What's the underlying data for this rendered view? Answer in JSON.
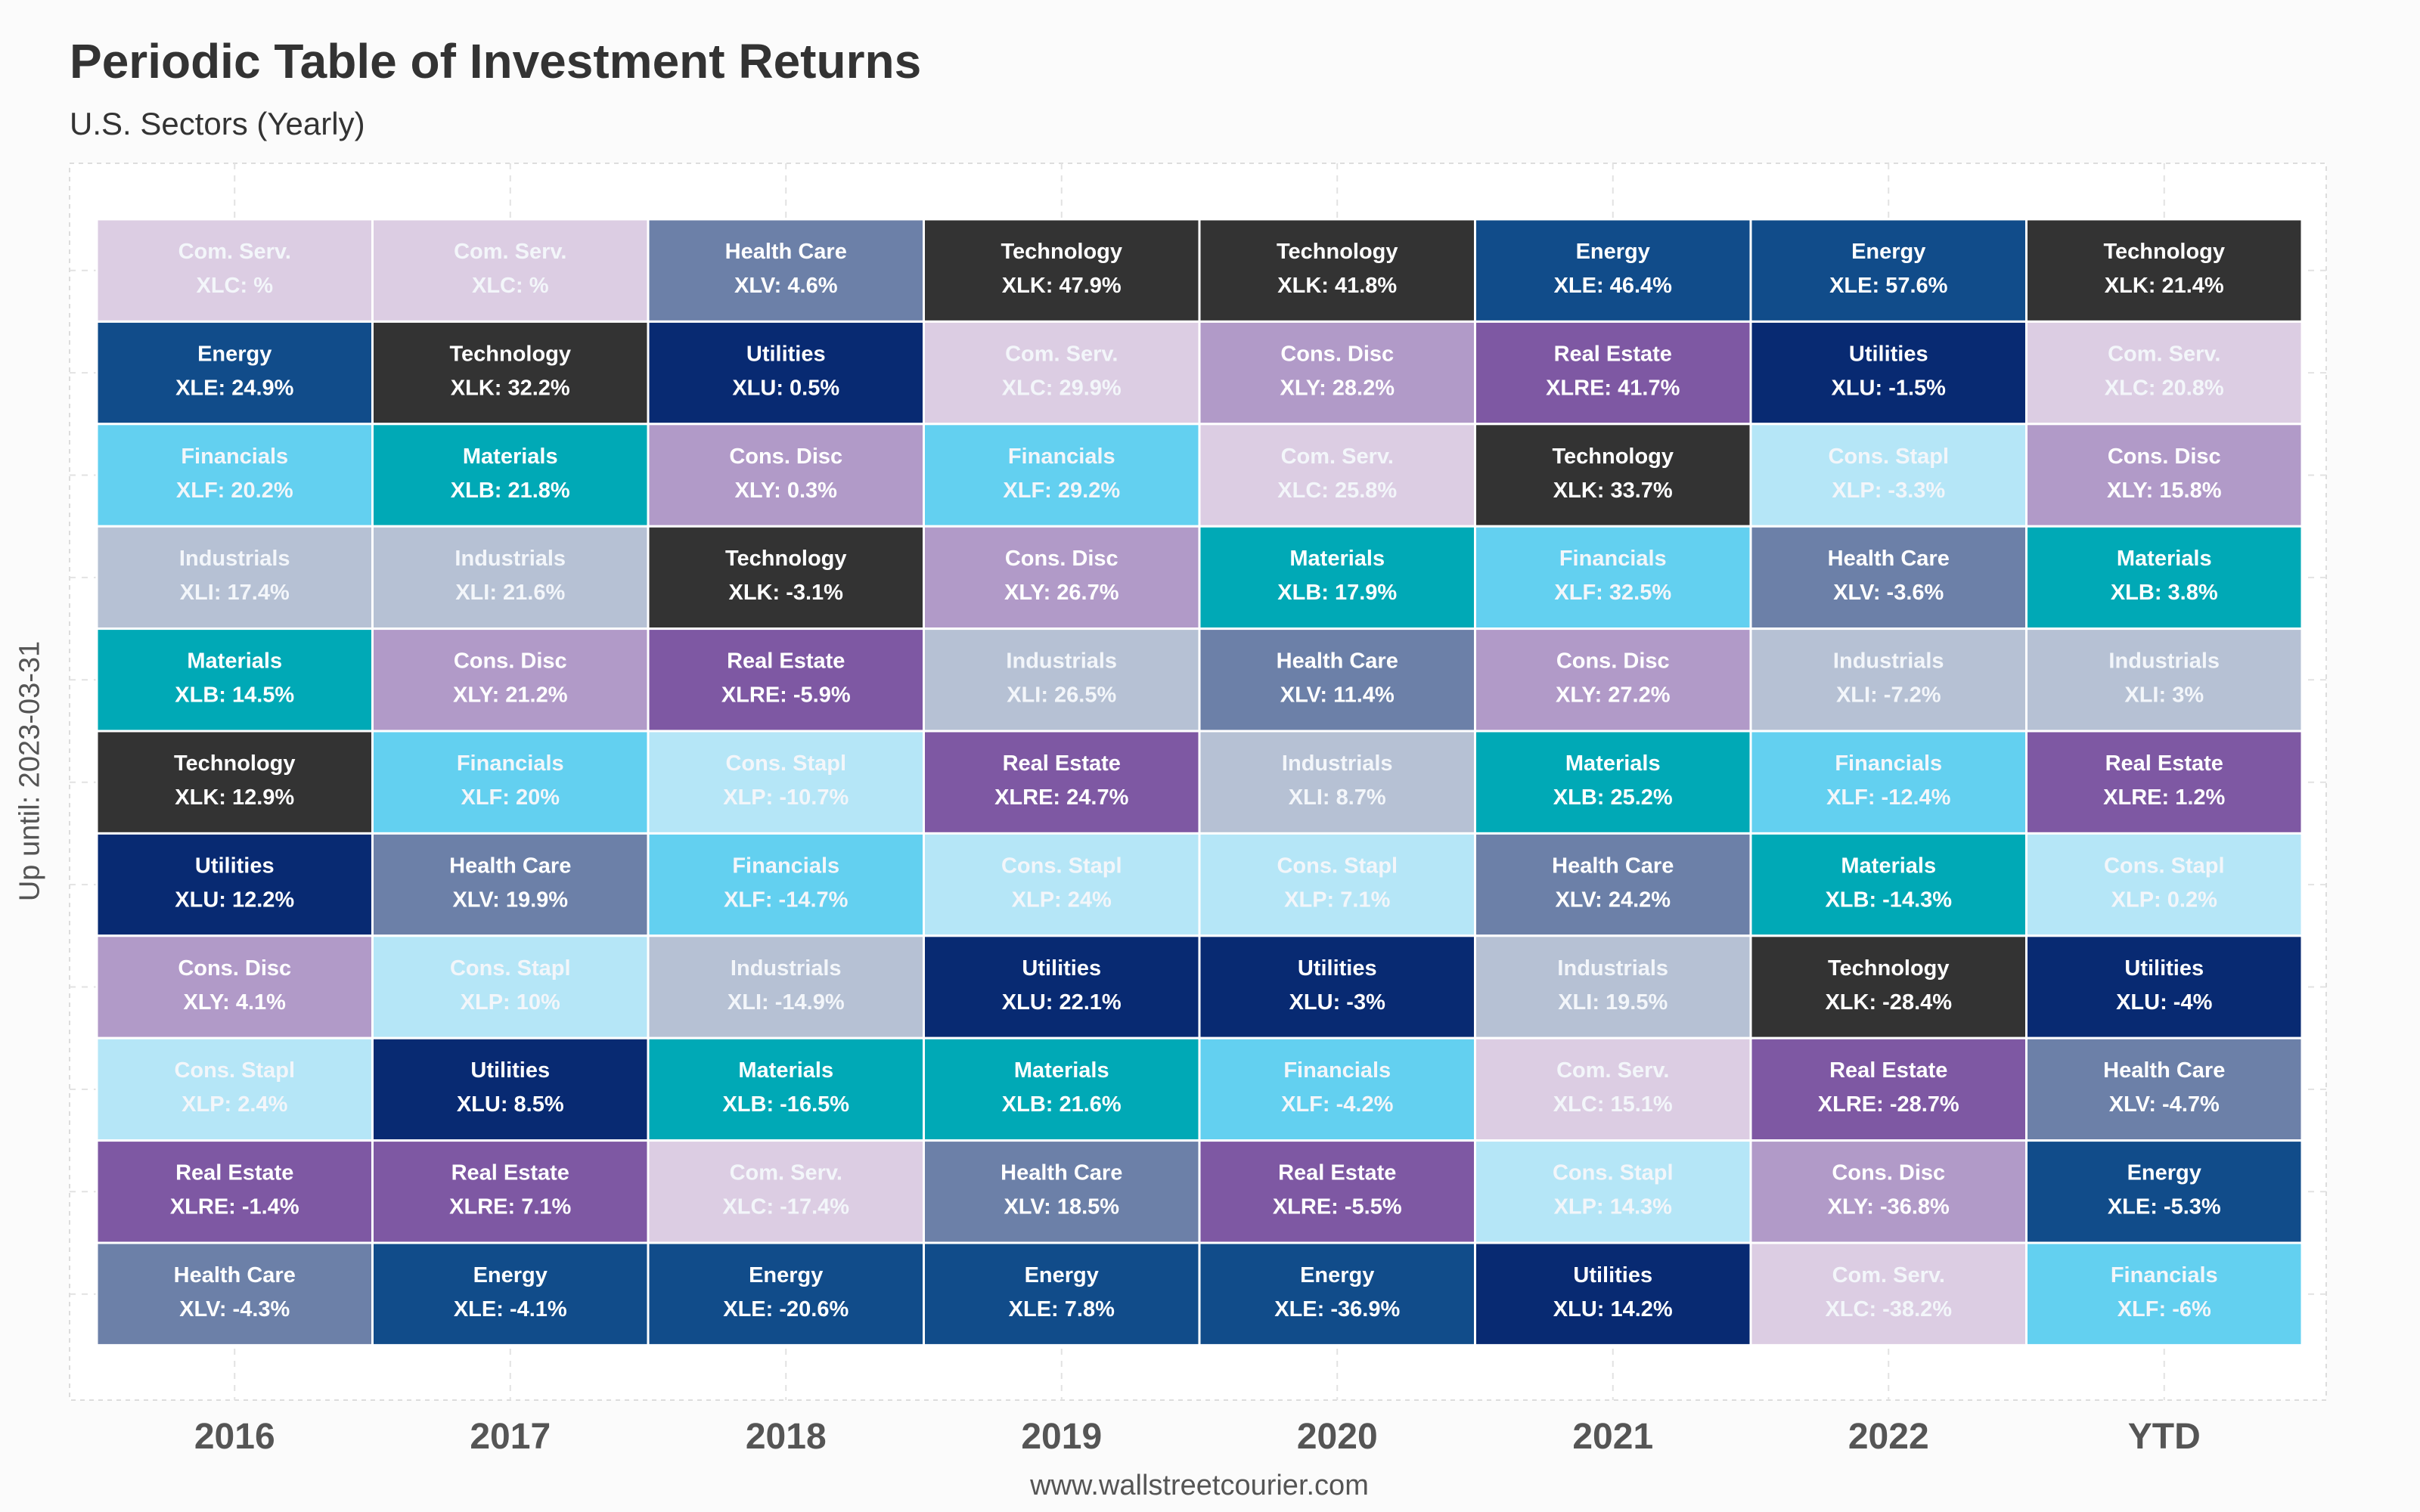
{
  "title": "Periodic Table of Investment Returns",
  "subtitle": "U.S. Sectors (Yearly)",
  "ylabel": "Up until: 2023-03-31",
  "caption": "www.wallstreetcourier.com",
  "colors": {
    "Com. Serv.": "#dccde3",
    "Energy": "#114c8a",
    "Financials": "#63d0f0",
    "Industrials": "#b6c1d4",
    "Materials": "#00a9b6",
    "Technology": "#333333",
    "Utilities": "#082a72",
    "Cons. Disc": "#b19ac8",
    "Cons. Stapl": "#b5e6f7",
    "Real Estate": "#7e58a3",
    "Health Care": "#6c80a8"
  },
  "light_text_sectors": [
    "Com. Serv.",
    "Cons. Stapl",
    "Industrials",
    "Financials"
  ],
  "chart_data": {
    "type": "table",
    "columns": [
      "2016",
      "2017",
      "2018",
      "2019",
      "2020",
      "2021",
      "2022",
      "YTD"
    ],
    "cells": [
      [
        {
          "sector": "Com. Serv.",
          "label": "XLC: %"
        },
        {
          "sector": "Energy",
          "label": "XLE: 24.9%"
        },
        {
          "sector": "Financials",
          "label": "XLF: 20.2%"
        },
        {
          "sector": "Industrials",
          "label": "XLI: 17.4%"
        },
        {
          "sector": "Materials",
          "label": "XLB: 14.5%"
        },
        {
          "sector": "Technology",
          "label": "XLK: 12.9%"
        },
        {
          "sector": "Utilities",
          "label": "XLU: 12.2%"
        },
        {
          "sector": "Cons. Disc",
          "label": "XLY: 4.1%"
        },
        {
          "sector": "Cons. Stapl",
          "label": "XLP: 2.4%"
        },
        {
          "sector": "Real Estate",
          "label": "XLRE: -1.4%"
        },
        {
          "sector": "Health Care",
          "label": "XLV: -4.3%"
        }
      ],
      [
        {
          "sector": "Com. Serv.",
          "label": "XLC: %"
        },
        {
          "sector": "Technology",
          "label": "XLK: 32.2%"
        },
        {
          "sector": "Materials",
          "label": "XLB: 21.8%"
        },
        {
          "sector": "Industrials",
          "label": "XLI: 21.6%"
        },
        {
          "sector": "Cons. Disc",
          "label": "XLY: 21.2%"
        },
        {
          "sector": "Financials",
          "label": "XLF: 20%"
        },
        {
          "sector": "Health Care",
          "label": "XLV: 19.9%"
        },
        {
          "sector": "Cons. Stapl",
          "label": "XLP: 10%"
        },
        {
          "sector": "Utilities",
          "label": "XLU: 8.5%"
        },
        {
          "sector": "Real Estate",
          "label": "XLRE: 7.1%"
        },
        {
          "sector": "Energy",
          "label": "XLE: -4.1%"
        }
      ],
      [
        {
          "sector": "Health Care",
          "label": "XLV: 4.6%"
        },
        {
          "sector": "Utilities",
          "label": "XLU: 0.5%"
        },
        {
          "sector": "Cons. Disc",
          "label": "XLY: 0.3%"
        },
        {
          "sector": "Technology",
          "label": "XLK: -3.1%"
        },
        {
          "sector": "Real Estate",
          "label": "XLRE: -5.9%"
        },
        {
          "sector": "Cons. Stapl",
          "label": "XLP: -10.7%"
        },
        {
          "sector": "Financials",
          "label": "XLF: -14.7%"
        },
        {
          "sector": "Industrials",
          "label": "XLI: -14.9%"
        },
        {
          "sector": "Materials",
          "label": "XLB: -16.5%"
        },
        {
          "sector": "Com. Serv.",
          "label": "XLC: -17.4%"
        },
        {
          "sector": "Energy",
          "label": "XLE: -20.6%"
        }
      ],
      [
        {
          "sector": "Technology",
          "label": "XLK: 47.9%"
        },
        {
          "sector": "Com. Serv.",
          "label": "XLC: 29.9%"
        },
        {
          "sector": "Financials",
          "label": "XLF: 29.2%"
        },
        {
          "sector": "Cons. Disc",
          "label": "XLY: 26.7%"
        },
        {
          "sector": "Industrials",
          "label": "XLI: 26.5%"
        },
        {
          "sector": "Real Estate",
          "label": "XLRE: 24.7%"
        },
        {
          "sector": "Cons. Stapl",
          "label": "XLP: 24%"
        },
        {
          "sector": "Utilities",
          "label": "XLU: 22.1%"
        },
        {
          "sector": "Materials",
          "label": "XLB: 21.6%"
        },
        {
          "sector": "Health Care",
          "label": "XLV: 18.5%"
        },
        {
          "sector": "Energy",
          "label": "XLE: 7.8%"
        }
      ],
      [
        {
          "sector": "Technology",
          "label": "XLK: 41.8%"
        },
        {
          "sector": "Cons. Disc",
          "label": "XLY: 28.2%"
        },
        {
          "sector": "Com. Serv.",
          "label": "XLC: 25.8%"
        },
        {
          "sector": "Materials",
          "label": "XLB: 17.9%"
        },
        {
          "sector": "Health Care",
          "label": "XLV: 11.4%"
        },
        {
          "sector": "Industrials",
          "label": "XLI: 8.7%"
        },
        {
          "sector": "Cons. Stapl",
          "label": "XLP: 7.1%"
        },
        {
          "sector": "Utilities",
          "label": "XLU: -3%"
        },
        {
          "sector": "Financials",
          "label": "XLF: -4.2%"
        },
        {
          "sector": "Real Estate",
          "label": "XLRE: -5.5%"
        },
        {
          "sector": "Energy",
          "label": "XLE: -36.9%"
        }
      ],
      [
        {
          "sector": "Energy",
          "label": "XLE: 46.4%"
        },
        {
          "sector": "Real Estate",
          "label": "XLRE: 41.7%"
        },
        {
          "sector": "Technology",
          "label": "XLK: 33.7%"
        },
        {
          "sector": "Financials",
          "label": "XLF: 32.5%"
        },
        {
          "sector": "Cons. Disc",
          "label": "XLY: 27.2%"
        },
        {
          "sector": "Materials",
          "label": "XLB: 25.2%"
        },
        {
          "sector": "Health Care",
          "label": "XLV: 24.2%"
        },
        {
          "sector": "Industrials",
          "label": "XLI: 19.5%"
        },
        {
          "sector": "Com. Serv.",
          "label": "XLC: 15.1%"
        },
        {
          "sector": "Cons. Stapl",
          "label": "XLP: 14.3%"
        },
        {
          "sector": "Utilities",
          "label": "XLU: 14.2%"
        }
      ],
      [
        {
          "sector": "Energy",
          "label": "XLE: 57.6%"
        },
        {
          "sector": "Utilities",
          "label": "XLU: -1.5%"
        },
        {
          "sector": "Cons. Stapl",
          "label": "XLP: -3.3%"
        },
        {
          "sector": "Health Care",
          "label": "XLV: -3.6%"
        },
        {
          "sector": "Industrials",
          "label": "XLI: -7.2%"
        },
        {
          "sector": "Financials",
          "label": "XLF: -12.4%"
        },
        {
          "sector": "Materials",
          "label": "XLB: -14.3%"
        },
        {
          "sector": "Technology",
          "label": "XLK: -28.4%"
        },
        {
          "sector": "Real Estate",
          "label": "XLRE: -28.7%"
        },
        {
          "sector": "Cons. Disc",
          "label": "XLY: -36.8%"
        },
        {
          "sector": "Com. Serv.",
          "label": "XLC: -38.2%"
        }
      ],
      [
        {
          "sector": "Technology",
          "label": "XLK: 21.4%"
        },
        {
          "sector": "Com. Serv.",
          "label": "XLC: 20.8%"
        },
        {
          "sector": "Cons. Disc",
          "label": "XLY: 15.8%"
        },
        {
          "sector": "Materials",
          "label": "XLB: 3.8%"
        },
        {
          "sector": "Industrials",
          "label": "XLI: 3%"
        },
        {
          "sector": "Real Estate",
          "label": "XLRE: 1.2%"
        },
        {
          "sector": "Cons. Stapl",
          "label": "XLP: 0.2%"
        },
        {
          "sector": "Utilities",
          "label": "XLU: -4%"
        },
        {
          "sector": "Health Care",
          "label": "XLV: -4.7%"
        },
        {
          "sector": "Energy",
          "label": "XLE: -5.3%"
        },
        {
          "sector": "Financials",
          "label": "XLF: -6%"
        }
      ]
    ]
  }
}
